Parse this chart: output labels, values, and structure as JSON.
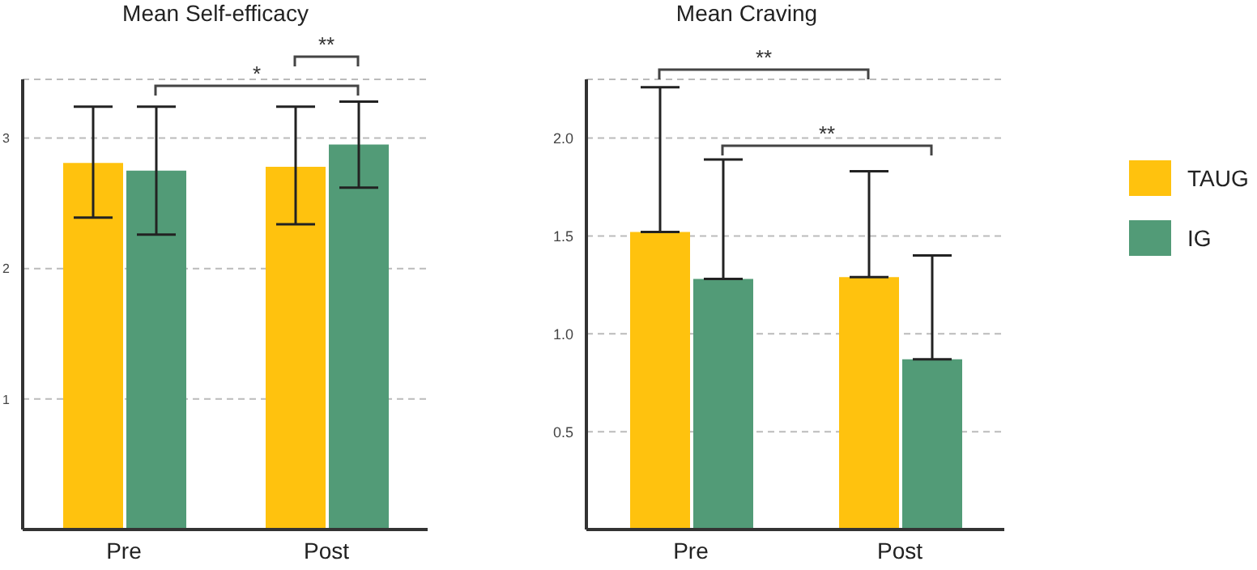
{
  "chart_data": [
    {
      "type": "bar",
      "title": "Mean Self-efficacy",
      "categories": [
        "Pre",
        "Post"
      ],
      "series": [
        {
          "color": "#ffc20e",
          "values": [
            2.81,
            2.78
          ],
          "errors": [
            [
              2.39,
              3.24
            ],
            [
              2.34,
              3.24
            ]
          ]
        },
        {
          "color": "#529b77",
          "values": [
            2.75,
            2.95
          ],
          "errors": [
            [
              2.26,
              3.24
            ],
            [
              2.62,
              3.28
            ]
          ]
        }
      ],
      "ylim": [
        0,
        3.45
      ],
      "yticks": [
        1,
        2,
        3
      ],
      "grid": "y",
      "annotations": [
        "*",
        "**"
      ]
    },
    {
      "type": "bar",
      "title": "Mean Craving",
      "categories": [
        "Pre",
        "Post"
      ],
      "series": [
        {
          "name": "TAUG",
          "color": "#ffc20e",
          "values": [
            1.52,
            1.29
          ],
          "errors": [
            [
              1.52,
              2.26
            ],
            [
              1.29,
              1.83
            ]
          ]
        },
        {
          "name": "IG",
          "color": "#529b77",
          "values": [
            1.28,
            0.87
          ],
          "errors": [
            [
              1.28,
              1.89
            ],
            [
              0.87,
              1.4
            ]
          ]
        }
      ],
      "ylim": [
        0,
        2.3
      ],
      "yticks": [
        0.5,
        {
          "value": 1,
          "label": "1.0"
        },
        1.5,
        {
          "value": 2,
          "label": "2.0"
        }
      ],
      "grid": "y",
      "legend": "right",
      "annotations": [
        "**",
        "**"
      ]
    }
  ]
}
